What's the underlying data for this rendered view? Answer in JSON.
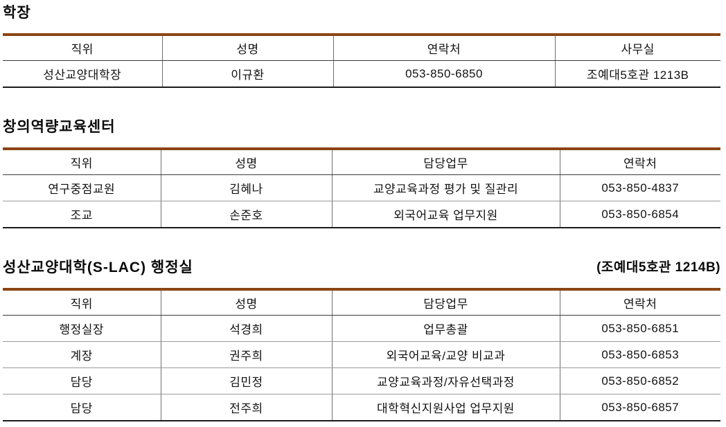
{
  "page": {
    "background": "#ffffff",
    "accent_line_color": "#8B4513",
    "text_color": "#111111"
  },
  "sections": [
    {
      "title": "학장",
      "subtitle": "",
      "headers": [
        "직위",
        "성명",
        "연락처",
        "사무실"
      ],
      "rows": [
        [
          "성산교양대학장",
          "이규환",
          "053-850-6850",
          "조예대5호관 1213B"
        ]
      ]
    },
    {
      "title": "창의역량교육센터",
      "subtitle": "",
      "headers": [
        "직위",
        "성명",
        "담당업무",
        "연락처"
      ],
      "rows": [
        [
          "연구중점교원",
          "김혜나",
          "교양교육과정 평가 및 질관리",
          "053-850-4837"
        ],
        [
          "조교",
          "손준호",
          "외국어교육 업무지원",
          "053-850-6854"
        ]
      ]
    },
    {
      "title": "성산교양대학(S-LAC) 행정실",
      "subtitle": "(조예대5호관 1214B)",
      "headers": [
        "직위",
        "성명",
        "담당업무",
        "연락처"
      ],
      "rows": [
        [
          "행정실장",
          "석경희",
          "업무총괄",
          "053-850-6851"
        ],
        [
          "계장",
          "권주희",
          "외국어교육/교양 비교과",
          "053-850-6853"
        ],
        [
          "담당",
          "김민정",
          "교양교육과정/자유선택과정",
          "053-850-6852"
        ],
        [
          "담당",
          "전주희",
          "대학혁신지원사업 업무지원",
          "053-850-6857"
        ]
      ]
    }
  ]
}
